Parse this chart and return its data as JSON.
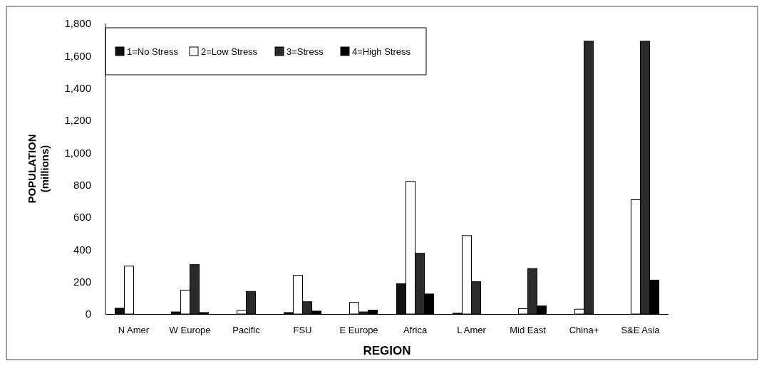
{
  "chart_data": {
    "type": "bar",
    "xlabel": "REGION",
    "ylabel": "POPULATION (millions)",
    "categories": [
      "N Amer",
      "W Europe",
      "Pacific",
      "FSU",
      "E Europe",
      "Africa",
      "L Amer",
      "Mid East",
      "China+",
      "S&E Asia"
    ],
    "series": [
      {
        "name": "1=No Stress",
        "color": "#111111",
        "values": [
          36,
          13,
          0,
          9,
          0,
          188,
          5,
          0,
          0,
          0
        ]
      },
      {
        "name": "2=Low Stress",
        "color": "#ffffff",
        "values": [
          297,
          148,
          22,
          240,
          72,
          822,
          486,
          33,
          30,
          708
        ]
      },
      {
        "name": "3=Stress",
        "color": "#2a2a2a",
        "values": [
          0,
          306,
          140,
          76,
          13,
          376,
          200,
          282,
          1690,
          1690
        ]
      },
      {
        "name": "4=High Stress",
        "color": "#000000",
        "values": [
          0,
          9,
          0,
          18,
          24,
          124,
          0,
          50,
          0,
          210
        ]
      }
    ],
    "ylim": [
      0,
      1800
    ],
    "yticks": [
      {
        "value": 0,
        "label": "0"
      },
      {
        "value": 200,
        "label": "200"
      },
      {
        "value": 400,
        "label": "400"
      },
      {
        "value": 600,
        "label": "600"
      },
      {
        "value": 800,
        "label": "800"
      },
      {
        "value": 1000,
        "label": "1,000"
      },
      {
        "value": 1200,
        "label": "1,200"
      },
      {
        "value": 1400,
        "label": "1,400"
      },
      {
        "value": 1600,
        "label": "1,600"
      },
      {
        "value": 1800,
        "label": "1,800"
      }
    ],
    "grid": false,
    "legend": "top left"
  }
}
